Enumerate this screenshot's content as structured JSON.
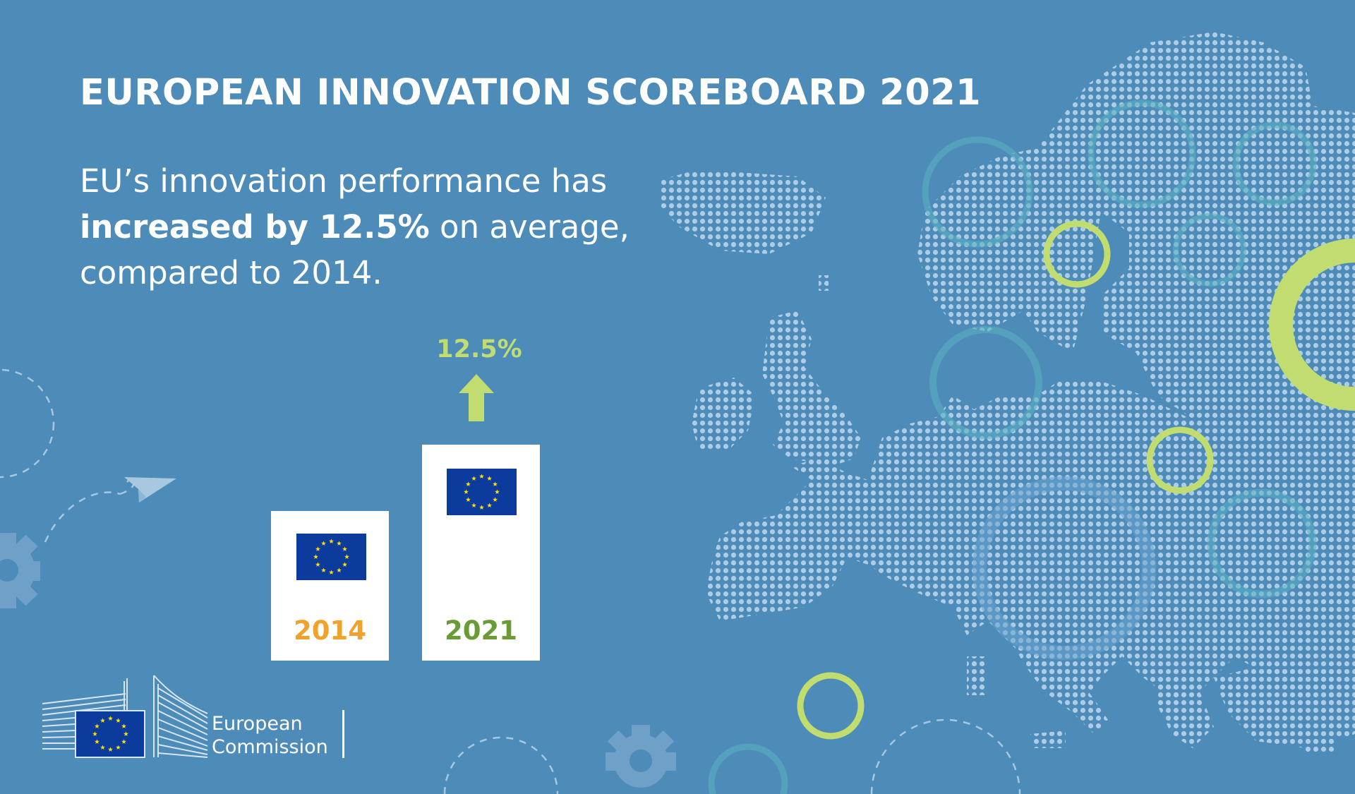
{
  "header": {
    "title": "EUROPEAN INNOVATION SCOREBOARD 2021"
  },
  "lead": {
    "line1": "EU’s innovation performance has",
    "line2_bold": "increased by 12.5%",
    "line2_rest": " on average,",
    "line3": "compared to 2014."
  },
  "comparison": {
    "change_label": "12.5%",
    "bars": [
      {
        "year": "2014",
        "color": "#f0a32c"
      },
      {
        "year": "2021",
        "color": "#6a9c35"
      }
    ]
  },
  "footer": {
    "logo_line1": "European",
    "logo_line2": "Commission"
  },
  "colors": {
    "background": "#4d8bb8",
    "accent_lime": "#c2dd6f",
    "eu_blue": "#0b3b9c",
    "eu_star": "#ffdd00"
  },
  "icons": [
    "eu-flag-icon",
    "up-arrow-icon",
    "paper-plane-icon",
    "gear-icon",
    "european-commission-logo"
  ]
}
